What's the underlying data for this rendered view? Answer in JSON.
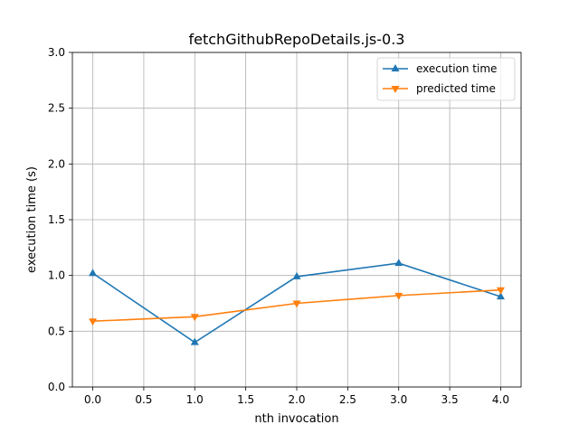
{
  "chart_data": {
    "type": "line",
    "title": "fetchGithubRepoDetails.js-0.3",
    "xlabel": "nth invocation",
    "ylabel": "execution time (s)",
    "xlim": [
      -0.2,
      4.2
    ],
    "ylim": [
      0.0,
      3.0
    ],
    "xticks": [
      0.0,
      0.5,
      1.0,
      1.5,
      2.0,
      2.5,
      3.0,
      3.5,
      4.0
    ],
    "xtick_labels": [
      "0.0",
      "0.5",
      "1.0",
      "1.5",
      "2.0",
      "2.5",
      "3.0",
      "3.5",
      "4.0"
    ],
    "yticks": [
      0.0,
      0.5,
      1.0,
      1.5,
      2.0,
      2.5,
      3.0
    ],
    "ytick_labels": [
      "0.0",
      "0.5",
      "1.0",
      "1.5",
      "2.0",
      "2.5",
      "3.0"
    ],
    "grid": true,
    "legend_position": "upper right",
    "x": [
      0,
      1,
      2,
      3,
      4
    ],
    "series": [
      {
        "name": "execution time",
        "color": "#1f77b4",
        "marker": "triangle-up",
        "values": [
          1.02,
          0.4,
          0.99,
          1.11,
          0.81
        ]
      },
      {
        "name": "predicted time",
        "color": "#ff7f0e",
        "marker": "triangle-down",
        "values": [
          0.59,
          0.63,
          0.75,
          0.82,
          0.87
        ]
      }
    ]
  }
}
